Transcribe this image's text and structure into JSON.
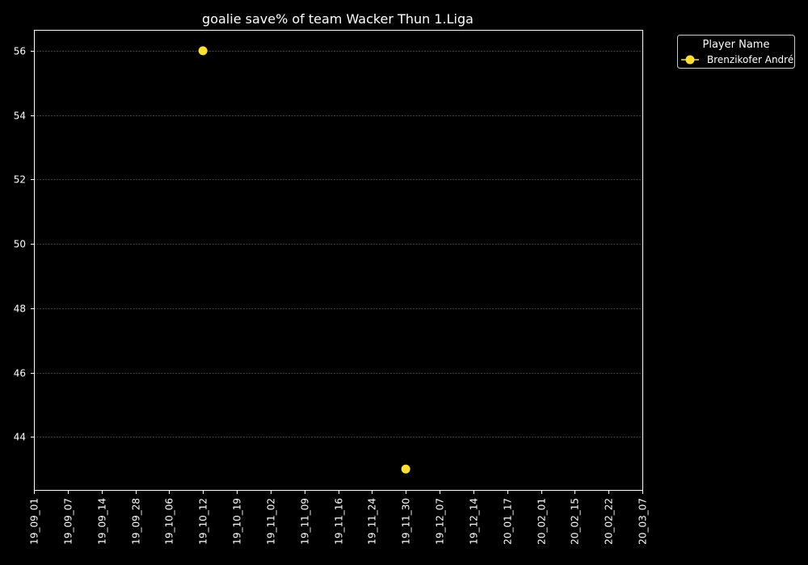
{
  "chart_data": {
    "type": "scatter",
    "title": "goalie save% of team Wacker Thun 1.Liga",
    "xlabel": "",
    "ylabel": "",
    "categories": [
      "19_09_01",
      "19_09_07",
      "19_09_14",
      "19_09_28",
      "19_10_06",
      "19_10_12",
      "19_10_19",
      "19_11_02",
      "19_11_09",
      "19_11_16",
      "19_11_24",
      "19_11_30",
      "19_12_07",
      "19_12_14",
      "20_01_17",
      "20_02_01",
      "20_02_15",
      "20_02_22",
      "20_03_07"
    ],
    "y_ticks": [
      44,
      46,
      48,
      50,
      52,
      54,
      56
    ],
    "ylim": [
      42.35,
      56.65
    ],
    "grid": "horizontal dashed",
    "legend": {
      "title": "Player Name",
      "placement": "outside top-right"
    },
    "series": [
      {
        "name": "Brenzikofer André",
        "color": "#ffe033",
        "points": [
          {
            "x": "19_10_12",
            "y": 56
          },
          {
            "x": "19_11_30",
            "y": 43
          }
        ]
      }
    ]
  }
}
